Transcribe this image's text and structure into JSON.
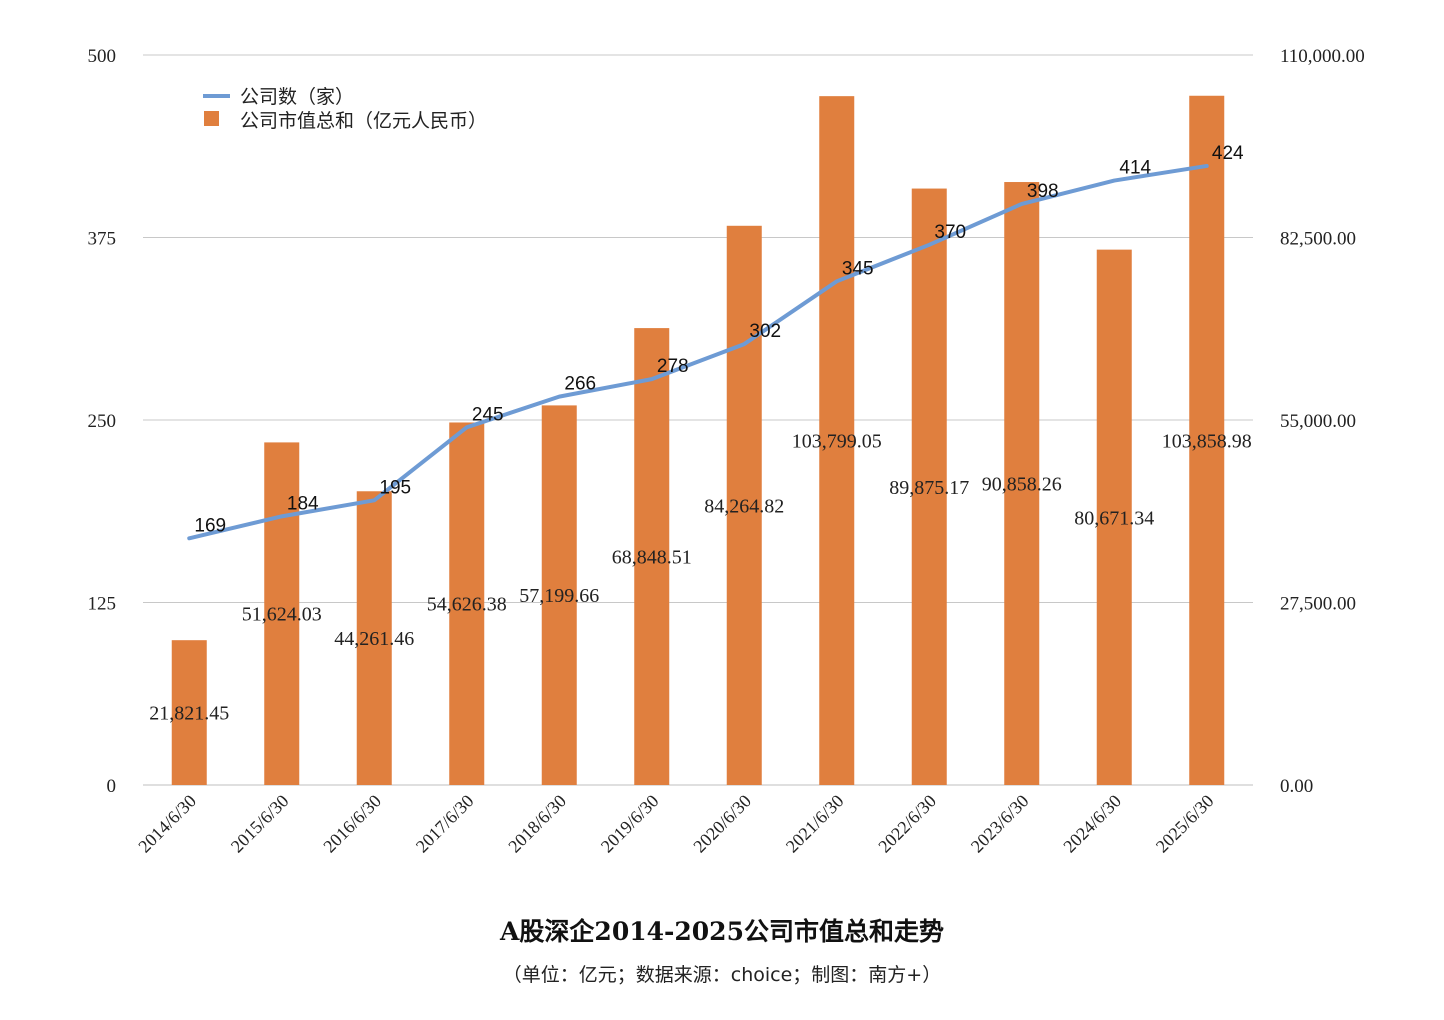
{
  "chart_data": {
    "type": "bar",
    "title": "A股深企2014-2025公司市值总和走势",
    "subtitle": "（单位：亿元；数据来源：choice；制图：南方+）",
    "categories": [
      "2014/6/30",
      "2015/6/30",
      "2016/6/30",
      "2017/6/30",
      "2018/6/30",
      "2019/6/30",
      "2020/6/30",
      "2021/6/30",
      "2022/6/30",
      "2023/6/30",
      "2024/6/30",
      "2025/6/30"
    ],
    "series": [
      {
        "name": "公司市值总和（亿元人民币）",
        "type": "bar",
        "axis": "right",
        "color": "#E07F3E",
        "values": [
          21821.45,
          51624.03,
          44261.46,
          54626.38,
          57199.66,
          68848.51,
          84264.82,
          103799.05,
          89875.17,
          90858.26,
          80671.34,
          103858.98
        ],
        "labels": [
          "21,821.45",
          "51,624.03",
          "44,261.46",
          "54,626.38",
          "57,199.66",
          "68,848.51",
          "84,264.82",
          "103,799.05",
          "89,875.17",
          "90,858.26",
          "80,671.34",
          "103,858.98"
        ]
      },
      {
        "name": "公司数（家）",
        "type": "line",
        "axis": "left",
        "color": "#6E9BD4",
        "values": [
          169,
          184,
          195,
          245,
          266,
          278,
          302,
          345,
          370,
          398,
          414,
          424
        ]
      }
    ],
    "y_left": {
      "ylim": [
        0,
        500
      ],
      "ticks": [
        "0",
        "125",
        "250",
        "375",
        "500"
      ]
    },
    "y_right": {
      "ylim": [
        0,
        110000
      ],
      "ticks": [
        "0.00",
        "27,500.00",
        "55,000.00",
        "82,500.00",
        "110,000.00"
      ]
    },
    "grid": true,
    "legend_position": "top-left"
  }
}
